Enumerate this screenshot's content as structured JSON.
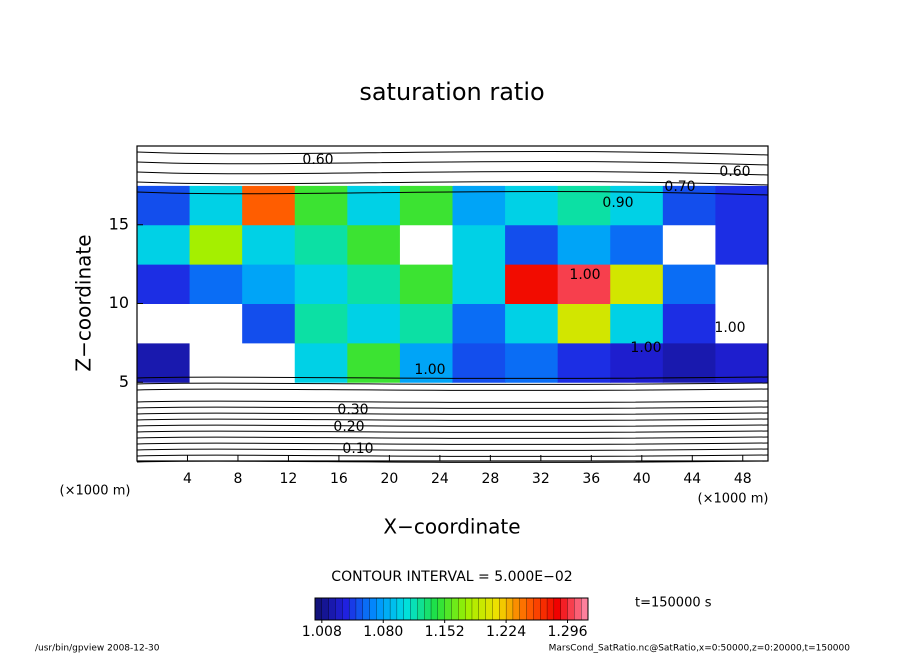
{
  "chart_data": {
    "type": "heatmap",
    "title": "saturation ratio",
    "x_label": "X−coordinate",
    "y_label": "Z−coordinate",
    "x_unit": "(×1000 m)",
    "y_unit": "(×1000 m)",
    "xlim": [
      0,
      50
    ],
    "ylim": [
      0,
      20
    ],
    "xticks": [
      4,
      8,
      12,
      16,
      20,
      24,
      28,
      32,
      36,
      40,
      44,
      48
    ],
    "yticks": [
      5,
      10,
      15
    ],
    "z": [
      [
        0.1,
        0.1,
        0.1,
        0.1,
        0.1,
        0.1,
        0.1,
        0.1,
        0.1,
        0.1,
        0.1,
        0.1
      ],
      [
        0.4,
        0.4,
        0.4,
        0.4,
        0.4,
        0.4,
        0.4,
        0.4,
        0.4,
        0.4,
        0.4,
        0.4
      ],
      [
        1.02,
        0.95,
        0.95,
        1.1,
        1.15,
        1.08,
        1.05,
        1.06,
        1.04,
        1.03,
        1.02,
        1.03
      ],
      [
        0.98,
        0.98,
        1.05,
        1.12,
        1.1,
        1.12,
        1.06,
        1.1,
        1.2,
        1.1,
        1.04,
        0.98
      ],
      [
        1.04,
        1.06,
        1.08,
        1.1,
        1.12,
        1.15,
        1.1,
        1.28,
        1.3,
        1.2,
        1.06,
        0.98
      ],
      [
        1.1,
        1.18,
        1.1,
        1.12,
        1.15,
        0.98,
        1.1,
        1.05,
        1.08,
        1.06,
        0.97,
        1.04
      ],
      [
        1.05,
        1.1,
        1.25,
        1.15,
        1.1,
        1.15,
        1.08,
        1.1,
        1.12,
        1.1,
        1.05,
        1.04
      ],
      [
        0.65,
        0.6,
        0.75,
        0.8,
        0.85,
        0.8,
        0.75,
        0.7,
        0.8,
        0.7,
        0.65,
        0.6
      ]
    ],
    "colormap": [
      "#10106e",
      "#2020e0",
      "#0090ff",
      "#00e0e0",
      "#20e040",
      "#a0f000",
      "#f0e000",
      "#ff6000",
      "#f00000",
      "#ff90b0"
    ],
    "clim": [
      1.0,
      1.32
    ],
    "colorbar_ticks": [
      {
        "value": 1.008,
        "label": "1.008"
      },
      {
        "value": 1.08,
        "label": "1.080"
      },
      {
        "value": 1.152,
        "label": "1.152"
      },
      {
        "value": 1.224,
        "label": "1.224"
      },
      {
        "value": 1.296,
        "label": "1.296"
      }
    ],
    "contour_labels": [
      {
        "value": 0.1,
        "label": "0.10"
      },
      {
        "value": 0.2,
        "label": "0.20"
      },
      {
        "value": 0.3,
        "label": "0.30"
      },
      {
        "value": 0.6,
        "label": "0.60"
      },
      {
        "value": 0.6,
        "label": "0.60"
      },
      {
        "value": 0.7,
        "label": "0.70"
      },
      {
        "value": 0.9,
        "label": "0.90"
      },
      {
        "value": 1,
        "label": "1.00"
      },
      {
        "value": 1,
        "label": "1.00"
      },
      {
        "value": 1,
        "label": "1.00"
      },
      {
        "value": 1,
        "label": "1.00"
      }
    ],
    "contour_interval": "CONTOUR INTERVAL = 5.000E−02",
    "time_label": "t=150000 s",
    "footer_left": "/usr/bin/gpview   2008-12-30",
    "footer_right": "MarsCond_SatRatio.nc@SatRatio,x=0:50000,z=0:20000,t=150000"
  }
}
